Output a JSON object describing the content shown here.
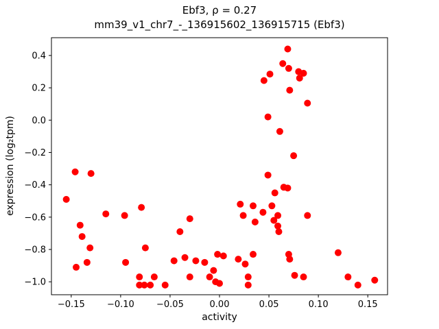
{
  "chart_data": {
    "type": "scatter",
    "title": "Ebf3, ρ = 0.27",
    "subtitle": "mm39_v1_chr7_-_136915602_136915715 (Ebf3)",
    "xlabel": "activity",
    "ylabel": "expression (log₂tpm)",
    "xlim": [
      -0.17,
      0.17
    ],
    "ylim": [
      -1.08,
      0.51
    ],
    "x_ticks": [
      -0.15,
      -0.1,
      -0.05,
      0.0,
      0.05,
      0.1,
      0.15
    ],
    "y_ticks": [
      0.4,
      0.2,
      0.0,
      -0.2,
      -0.4,
      -0.6,
      -0.8,
      -1.0
    ],
    "grid": false,
    "legend": "none",
    "marker_color": "#ff0000",
    "marker_radius_px": 5,
    "points": [
      [
        -0.155,
        -0.49
      ],
      [
        -0.146,
        -0.32
      ],
      [
        -0.13,
        -0.33
      ],
      [
        -0.141,
        -0.65
      ],
      [
        -0.139,
        -0.72
      ],
      [
        -0.145,
        -0.91
      ],
      [
        -0.134,
        -0.88
      ],
      [
        -0.131,
        -0.79
      ],
      [
        -0.115,
        -0.58
      ],
      [
        -0.096,
        -0.59
      ],
      [
        -0.095,
        -0.88
      ],
      [
        -0.079,
        -0.54
      ],
      [
        -0.075,
        -0.79
      ],
      [
        -0.081,
        -0.97
      ],
      [
        -0.081,
        -1.02
      ],
      [
        -0.076,
        -1.02
      ],
      [
        -0.07,
        -1.02
      ],
      [
        -0.066,
        -0.97
      ],
      [
        -0.055,
        -1.02
      ],
      [
        -0.046,
        -0.87
      ],
      [
        -0.04,
        -0.69
      ],
      [
        -0.035,
        -0.85
      ],
      [
        -0.03,
        -0.61
      ],
      [
        -0.03,
        -0.97
      ],
      [
        -0.024,
        -0.87
      ],
      [
        -0.015,
        -0.88
      ],
      [
        -0.01,
        -0.97
      ],
      [
        -0.006,
        -0.93
      ],
      [
        -0.002,
        -0.83
      ],
      [
        -0.004,
        -1.0
      ],
      [
        0.0,
        -1.01
      ],
      [
        0.004,
        -0.84
      ],
      [
        0.019,
        -0.86
      ],
      [
        0.021,
        -0.52
      ],
      [
        0.024,
        -0.59
      ],
      [
        0.026,
        -0.89
      ],
      [
        0.029,
        -0.97
      ],
      [
        0.029,
        -1.02
      ],
      [
        0.034,
        -0.83
      ],
      [
        0.034,
        -0.53
      ],
      [
        0.036,
        -0.63
      ],
      [
        0.044,
        -0.57
      ],
      [
        0.045,
        0.245
      ],
      [
        0.049,
        0.02
      ],
      [
        0.049,
        -0.34
      ],
      [
        0.051,
        0.285
      ],
      [
        0.053,
        -0.53
      ],
      [
        0.055,
        -0.62
      ],
      [
        0.056,
        -0.45
      ],
      [
        0.059,
        -0.59
      ],
      [
        0.059,
        -0.655
      ],
      [
        0.06,
        -0.69
      ],
      [
        0.061,
        -0.07
      ],
      [
        0.064,
        0.35
      ],
      [
        0.065,
        -0.415
      ],
      [
        0.069,
        -0.42
      ],
      [
        0.069,
        0.44
      ],
      [
        0.07,
        0.32
      ],
      [
        0.071,
        0.185
      ],
      [
        0.07,
        -0.83
      ],
      [
        0.071,
        -0.86
      ],
      [
        0.075,
        -0.22
      ],
      [
        0.076,
        -0.96
      ],
      [
        0.08,
        0.3
      ],
      [
        0.081,
        0.26
      ],
      [
        0.085,
        0.29
      ],
      [
        0.085,
        -0.97
      ],
      [
        0.089,
        0.105
      ],
      [
        0.089,
        -0.59
      ],
      [
        0.12,
        -0.82
      ],
      [
        0.13,
        -0.97
      ],
      [
        0.14,
        -1.02
      ],
      [
        0.157,
        -0.99
      ]
    ]
  }
}
